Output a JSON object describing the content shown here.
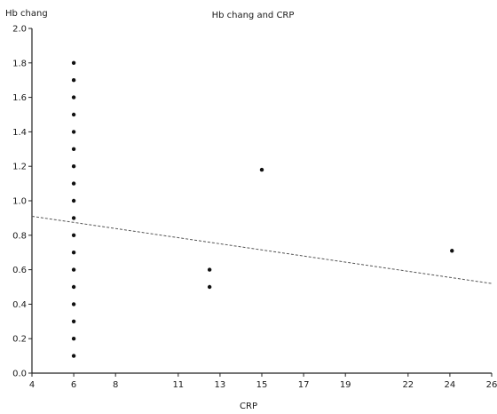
{
  "chart_data": {
    "type": "scatter",
    "title": "Hb chang and CRP",
    "xlabel": "CRP",
    "ylabel": "Hb chang",
    "xlim": [
      4,
      26
    ],
    "ylim": [
      0.0,
      2.0
    ],
    "x_ticks": [
      4,
      6,
      8,
      11,
      13,
      15,
      17,
      19,
      22,
      24,
      26
    ],
    "x_tick_labels": [
      "4",
      "6",
      "8",
      "11",
      "13",
      "15",
      "17",
      "19",
      "22",
      "24",
      "26"
    ],
    "y_ticks": [
      0.0,
      0.2,
      0.4,
      0.6,
      0.8,
      1.0,
      1.2,
      1.4,
      1.6,
      1.8,
      2.0
    ],
    "y_tick_labels": [
      "0.0",
      "0.2",
      "0.4",
      "0.6",
      "0.8",
      "1.0",
      "1.2",
      "1.4",
      "1.6",
      "1.8",
      "2.0"
    ],
    "grid": false,
    "points": [
      {
        "x": 6.0,
        "y": 0.1
      },
      {
        "x": 6.0,
        "y": 0.2
      },
      {
        "x": 6.0,
        "y": 0.3
      },
      {
        "x": 6.0,
        "y": 0.4
      },
      {
        "x": 6.0,
        "y": 0.5
      },
      {
        "x": 6.0,
        "y": 0.6
      },
      {
        "x": 6.0,
        "y": 0.7
      },
      {
        "x": 6.0,
        "y": 0.8
      },
      {
        "x": 6.0,
        "y": 0.9
      },
      {
        "x": 6.0,
        "y": 1.0
      },
      {
        "x": 6.0,
        "y": 1.1
      },
      {
        "x": 6.0,
        "y": 1.2
      },
      {
        "x": 6.0,
        "y": 1.3
      },
      {
        "x": 6.0,
        "y": 1.4
      },
      {
        "x": 6.0,
        "y": 1.5
      },
      {
        "x": 6.0,
        "y": 1.6
      },
      {
        "x": 6.0,
        "y": 1.7
      },
      {
        "x": 6.0,
        "y": 1.8
      },
      {
        "x": 12.5,
        "y": 0.5
      },
      {
        "x": 12.5,
        "y": 0.6
      },
      {
        "x": 15.0,
        "y": 1.18
      },
      {
        "x": 24.1,
        "y": 0.71
      }
    ],
    "trendline": {
      "x": [
        4,
        26
      ],
      "y": [
        0.91,
        0.52
      ],
      "style": "dashed"
    }
  }
}
